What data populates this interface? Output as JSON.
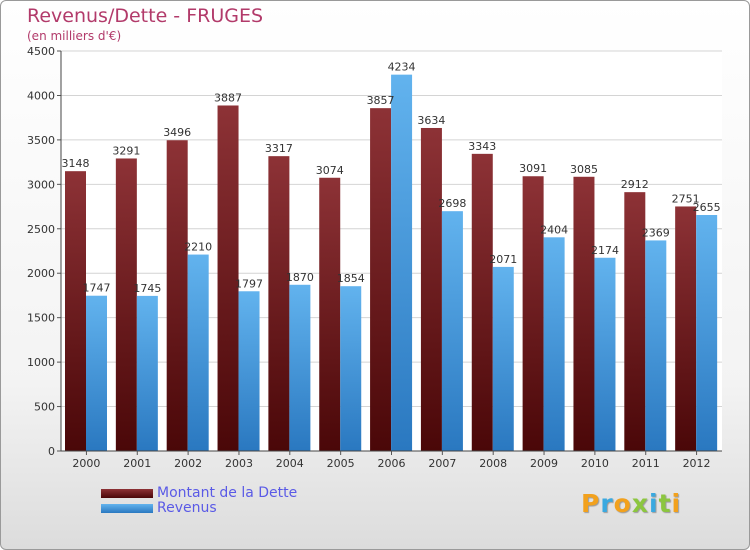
{
  "chart_data": {
    "type": "bar",
    "title": "Revenus/Dette - FRUGES",
    "subtitle": "(en milliers d'€)",
    "categories": [
      "2000",
      "2001",
      "2002",
      "2003",
      "2004",
      "2005",
      "2006",
      "2007",
      "2008",
      "2009",
      "2010",
      "2011",
      "2012"
    ],
    "series": [
      {
        "name": "Montant de la Dette",
        "color": "#7a1f22",
        "values": [
          3148,
          3291,
          3496,
          3887,
          3317,
          3074,
          3857,
          3634,
          3343,
          3091,
          3085,
          2912,
          2751
        ]
      },
      {
        "name": "Revenus",
        "color": "#4a9fe0",
        "values": [
          1747,
          1745,
          2210,
          1797,
          1870,
          1854,
          4234,
          2698,
          2071,
          2404,
          2174,
          2369,
          2655
        ]
      }
    ],
    "ylim": [
      0,
      4500
    ],
    "yticks": [
      0,
      500,
      1000,
      1500,
      2000,
      2500,
      3000,
      3500,
      4000,
      4500
    ],
    "grid": true,
    "legend_position": "bottom-left"
  },
  "brand": {
    "letters": [
      "P",
      "r",
      "o",
      "x",
      "i",
      "t",
      "i"
    ],
    "colors": [
      "#f2a11d",
      "#3aa9e0",
      "#f2a11d",
      "#8cc63f",
      "#3aa9e0",
      "#8cc63f",
      "#f2a11d"
    ]
  }
}
